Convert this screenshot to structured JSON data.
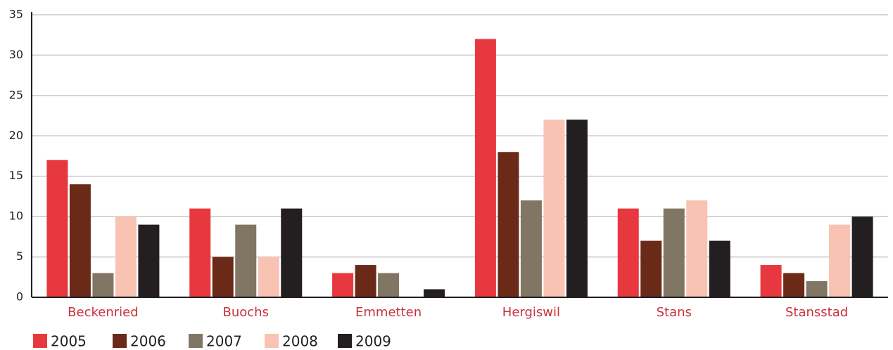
{
  "chart_data": {
    "type": "bar",
    "categories": [
      "Beckenried",
      "Buochs",
      "Emmetten",
      "Hergiswil",
      "Stans",
      "Stansstad"
    ],
    "series": [
      {
        "name": "2005",
        "color": "#e8383f",
        "values": [
          17,
          11,
          3,
          32,
          11,
          4
        ]
      },
      {
        "name": "2006",
        "color": "#6b2a18",
        "values": [
          14,
          5,
          4,
          18,
          7,
          3
        ]
      },
      {
        "name": "2007",
        "color": "#807663",
        "values": [
          3,
          9,
          3,
          12,
          11,
          2
        ]
      },
      {
        "name": "2008",
        "color": "#f9c3b3",
        "values": [
          10,
          5,
          0,
          22,
          12,
          9
        ]
      },
      {
        "name": "2009",
        "color": "#231f20",
        "values": [
          9,
          11,
          1,
          22,
          7,
          10
        ]
      }
    ],
    "ylim": [
      0,
      35
    ],
    "yticks": [
      0,
      5,
      10,
      15,
      20,
      25,
      30,
      35
    ],
    "grid": true
  }
}
